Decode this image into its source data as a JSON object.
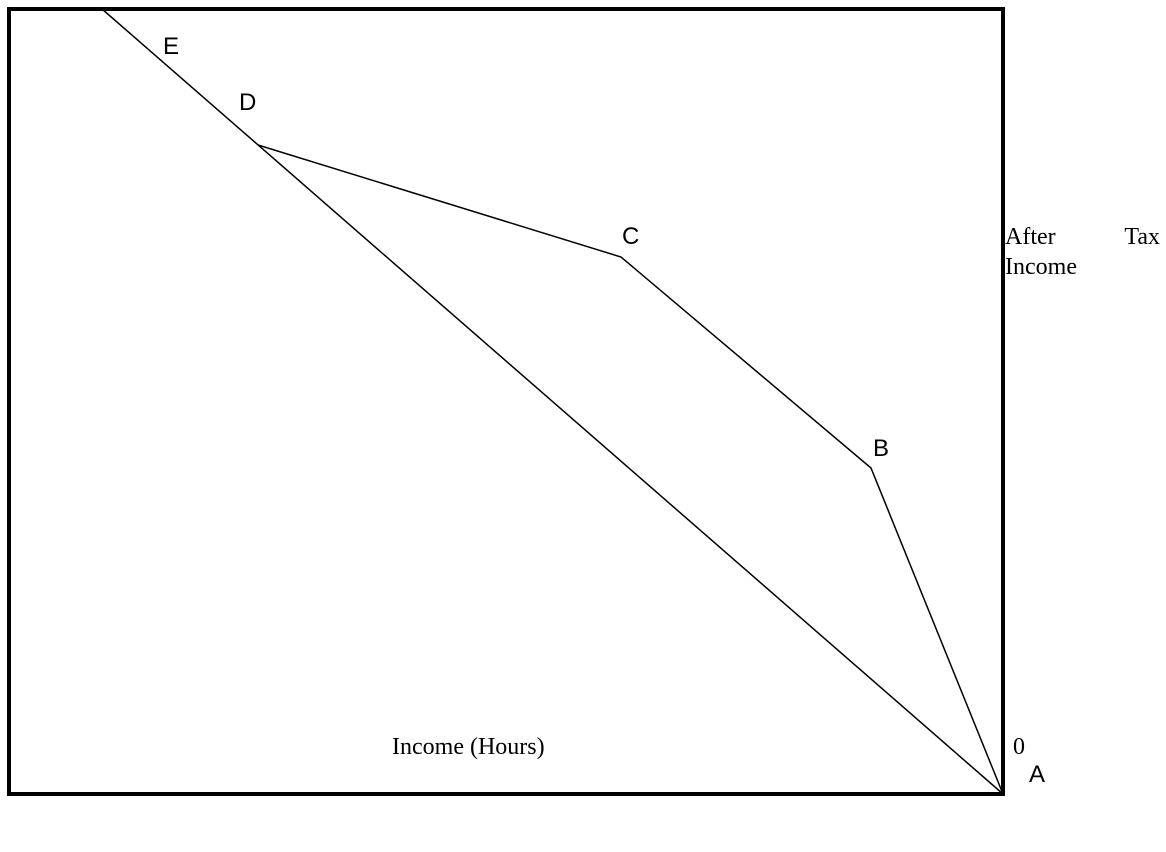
{
  "diagram": {
    "frame_color": "#000000",
    "line_color": "#000000",
    "points": [
      {
        "id": "A",
        "label": "A"
      },
      {
        "id": "B",
        "label": "B"
      },
      {
        "id": "C",
        "label": "C"
      },
      {
        "id": "D",
        "label": "D"
      },
      {
        "id": "E",
        "label": "E"
      }
    ],
    "labels": {
      "after_tax_word1": "After",
      "after_tax_word2": "Tax",
      "after_tax_line2": "Income",
      "x_axis": "Income (Hours)",
      "origin": "0"
    }
  }
}
